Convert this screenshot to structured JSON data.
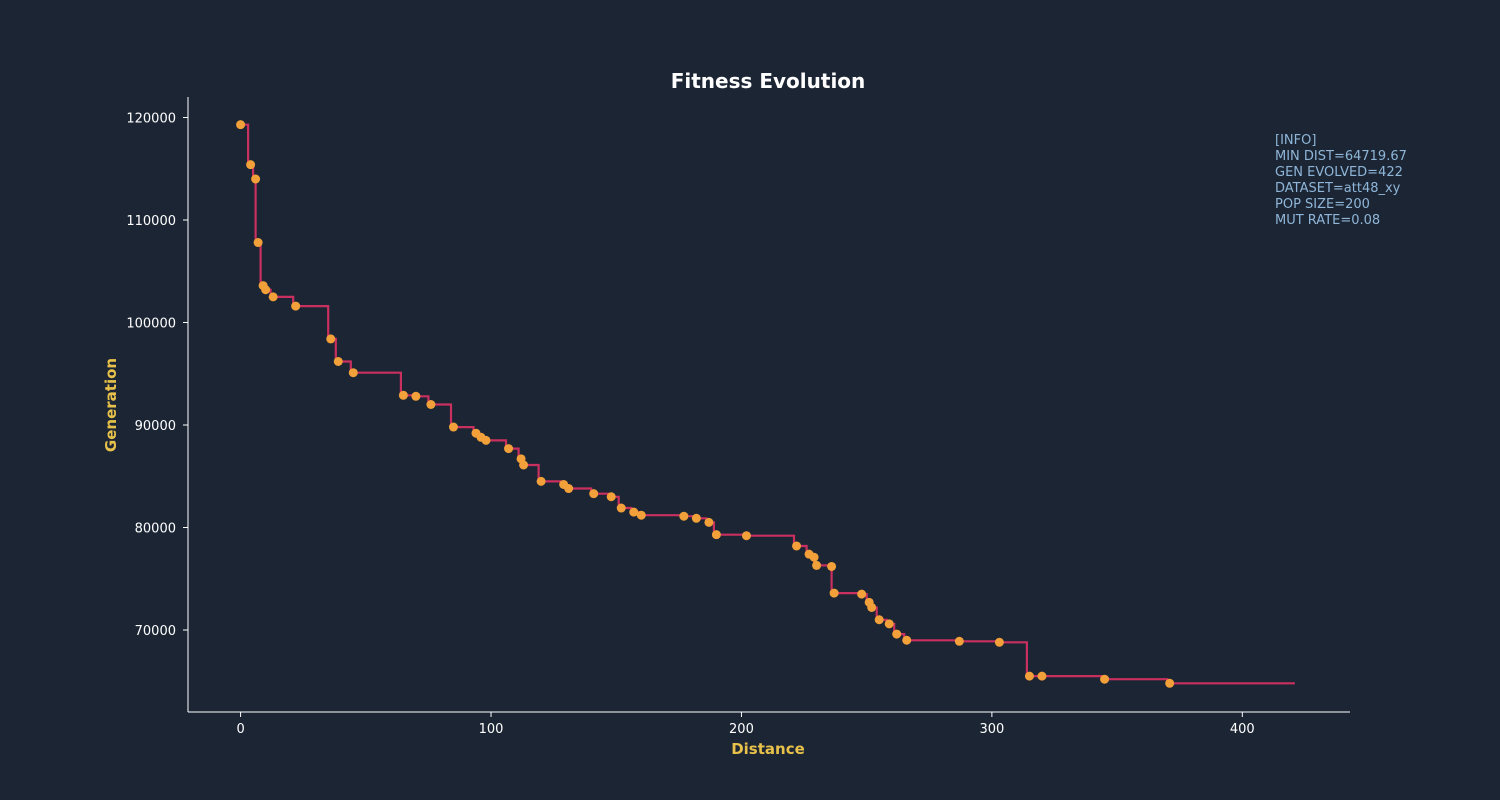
{
  "colors": {
    "background": "#1c2534",
    "line": "#c9305f",
    "marker": "#f2a03a",
    "axis": "#ffffff",
    "axis_label": "#e7c14a",
    "info_text": "#8fb6d8"
  },
  "info": {
    "lines": [
      "[INFO]",
      "MIN DIST=64719.67",
      "GEN EVOLVED=422",
      "DATASET=att48_xy",
      "POP SIZE=200",
      "MUT RATE=0.08"
    ]
  },
  "chart_data": {
    "type": "line",
    "title": "Fitness Evolution",
    "xlabel": "Distance",
    "ylabel": "Generation",
    "xlim": [
      -21,
      443
    ],
    "ylim": [
      62000,
      122000
    ],
    "xticks": [
      0,
      100,
      200,
      300,
      400
    ],
    "yticks": [
      70000,
      80000,
      90000,
      100000,
      110000,
      120000
    ],
    "grid": false,
    "line_style": "step",
    "x_end": 421,
    "series": [
      {
        "points": [
          [
            0,
            119300
          ],
          [
            4,
            115400
          ],
          [
            6,
            114000
          ],
          [
            7,
            107800
          ],
          [
            9,
            103600
          ],
          [
            10,
            103200
          ],
          [
            13,
            102500
          ],
          [
            22,
            101600
          ],
          [
            36,
            98400
          ],
          [
            39,
            96200
          ],
          [
            45,
            95100
          ],
          [
            65,
            92900
          ],
          [
            70,
            92800
          ],
          [
            76,
            92000
          ],
          [
            85,
            89800
          ],
          [
            94,
            89200
          ],
          [
            96,
            88800
          ],
          [
            98,
            88500
          ],
          [
            107,
            87700
          ],
          [
            112,
            86700
          ],
          [
            113,
            86100
          ],
          [
            120,
            84500
          ],
          [
            129,
            84200
          ],
          [
            131,
            83800
          ],
          [
            141,
            83300
          ],
          [
            148,
            83000
          ],
          [
            152,
            81900
          ],
          [
            157,
            81500
          ],
          [
            160,
            81200
          ],
          [
            177,
            81100
          ],
          [
            182,
            80900
          ],
          [
            187,
            80500
          ],
          [
            190,
            79300
          ],
          [
            202,
            79200
          ],
          [
            222,
            78200
          ],
          [
            227,
            77400
          ],
          [
            229,
            77100
          ],
          [
            230,
            76300
          ],
          [
            236,
            76200
          ],
          [
            237,
            73600
          ],
          [
            248,
            73500
          ],
          [
            251,
            72700
          ],
          [
            252,
            72200
          ],
          [
            255,
            71000
          ],
          [
            259,
            70600
          ],
          [
            262,
            69600
          ],
          [
            266,
            69000
          ],
          [
            287,
            68900
          ],
          [
            303,
            68800
          ],
          [
            315,
            65500
          ],
          [
            320,
            65500
          ],
          [
            345,
            65200
          ],
          [
            371,
            64800
          ]
        ]
      }
    ]
  }
}
